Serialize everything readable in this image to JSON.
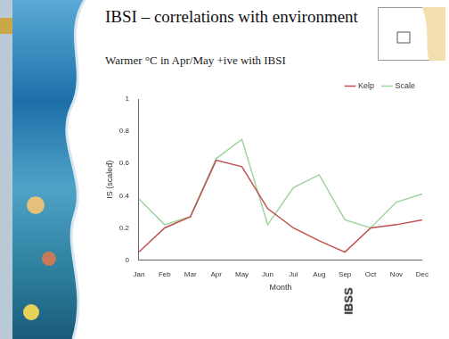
{
  "slide": {
    "title": "IBSI – correlations with environment",
    "subtitle": "Warmer °C in Apr/May +ive with IBSI",
    "side_label": "IBSS"
  },
  "chart_data": {
    "type": "line",
    "categories": [
      "Jan",
      "Feb",
      "Mar",
      "Apr",
      "May",
      "Jun",
      "Jul",
      "Aug",
      "Sep",
      "Oct",
      "Nov",
      "Dec"
    ],
    "series": [
      {
        "name": "Kelp",
        "color": "#c0504d",
        "values": [
          0.05,
          0.2,
          0.27,
          0.62,
          0.58,
          0.32,
          0.2,
          0.12,
          0.05,
          0.2,
          0.22,
          0.25
        ]
      },
      {
        "name": "Scale",
        "color": "#9fd4a0",
        "values": [
          0.38,
          0.22,
          0.27,
          0.63,
          0.75,
          0.22,
          0.45,
          0.53,
          0.25,
          0.2,
          0.36,
          0.41
        ]
      }
    ],
    "x_label": "Month",
    "y_label": "IS (scaled)",
    "ylim": [
      0,
      1
    ],
    "yticks": [
      0,
      0.2,
      0.4,
      0.6,
      0.8,
      1
    ],
    "grid": false,
    "legend": "upper right"
  }
}
